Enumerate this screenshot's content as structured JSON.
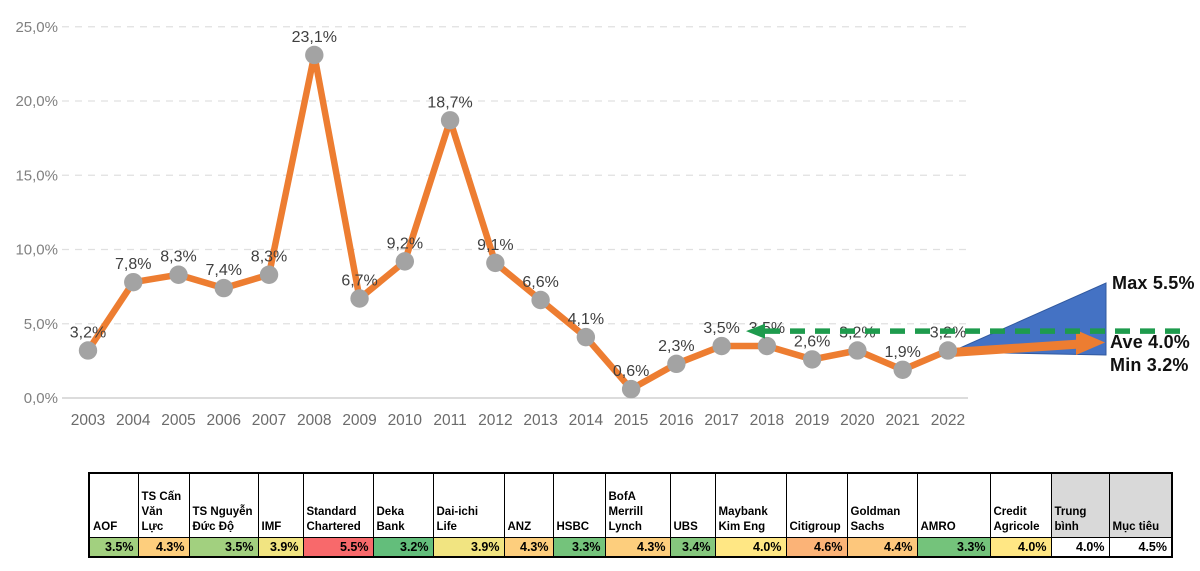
{
  "chart_data": {
    "type": "line",
    "title": "",
    "xlabel": "",
    "ylabel": "",
    "categories": [
      "2003",
      "2004",
      "2005",
      "2006",
      "2007",
      "2008",
      "2009",
      "2010",
      "2011",
      "2012",
      "2013",
      "2014",
      "2015",
      "2016",
      "2017",
      "2018",
      "2019",
      "2020",
      "2021",
      "2022"
    ],
    "values": [
      3.2,
      7.8,
      8.3,
      7.4,
      8.3,
      23.1,
      6.7,
      9.2,
      18.7,
      9.1,
      6.6,
      4.1,
      0.6,
      2.3,
      3.5,
      3.5,
      2.6,
      3.2,
      1.9,
      3.2
    ],
    "point_labels": [
      "3,2%",
      "7,8%",
      "8,3%",
      "7,4%",
      "8,3%",
      "23,1%",
      "6,7%",
      "9,2%",
      "18,7%",
      "9,1%",
      "6,6%",
      "4,1%",
      "0,6%",
      "2,3%",
      "3,5%",
      "3,5%",
      "2,6%",
      "3,2%",
      "1,9%",
      "3,2%"
    ],
    "ylim": [
      0,
      25
    ],
    "y_ticks": [
      {
        "value": 0,
        "label": "0,0%"
      },
      {
        "value": 5,
        "label": "5,0%"
      },
      {
        "value": 10,
        "label": "10,0%"
      },
      {
        "value": 15,
        "label": "15,0%"
      },
      {
        "value": 20,
        "label": "20,0%"
      },
      {
        "value": 25,
        "label": "25,0%"
      }
    ],
    "grid": "horizontal-dashed",
    "legend": "none",
    "series_color": "#ED7D31",
    "marker_color": "#A3A3A3",
    "target_line": {
      "value": 4.5,
      "style": "dashed",
      "color": "#1E9B4D",
      "starts_at_category": "2018",
      "arrow_direction": "left"
    },
    "forecast_fan": {
      "from_category": "2022",
      "from_value": 3.2,
      "max": 5.5,
      "ave": 4.0,
      "min": 3.2,
      "fill_color": "#4472C4",
      "arrow_color": "#ED7D31"
    }
  },
  "annotations": {
    "max": "Max 5.5%",
    "ave": "Ave 4.0%",
    "min": "Min 3.2%"
  },
  "forecast_table": {
    "columns": [
      {
        "label": "AOF",
        "value": "3.5%",
        "value_bg": "#A2D07F",
        "header_bg": "#FFFFFF"
      },
      {
        "label": "TS Cấn Văn Lực",
        "value": "4.3%",
        "value_bg": "#FDCE7D",
        "header_bg": "#FFFFFF"
      },
      {
        "label": "TS Nguyễn Đức Độ",
        "value": "3.5%",
        "value_bg": "#A2D07F",
        "header_bg": "#FFFFFF"
      },
      {
        "label": "IMF",
        "value": "3.9%",
        "value_bg": "#F1E481",
        "header_bg": "#FFFFFF"
      },
      {
        "label": "Standard Chartered",
        "value": "5.5%",
        "value_bg": "#F8696B",
        "header_bg": "#FFFFFF"
      },
      {
        "label": "Deka Bank",
        "value": "3.2%",
        "value_bg": "#63BE7B",
        "header_bg": "#FFFFFF"
      },
      {
        "label": "Dai-ichi Life",
        "value": "3.9%",
        "value_bg": "#F1E481",
        "header_bg": "#FFFFFF"
      },
      {
        "label": "ANZ",
        "value": "4.3%",
        "value_bg": "#FDCE7D",
        "header_bg": "#FFFFFF"
      },
      {
        "label": "HSBC",
        "value": "3.3%",
        "value_bg": "#74C37B",
        "header_bg": "#FFFFFF"
      },
      {
        "label": "BofA Merrill Lynch",
        "value": "4.3%",
        "value_bg": "#FDCE7D",
        "header_bg": "#FFFFFF"
      },
      {
        "label": "UBS",
        "value": "3.4%",
        "value_bg": "#85C77D",
        "header_bg": "#FFFFFF"
      },
      {
        "label": "Maybank Kim Eng",
        "value": "4.0%",
        "value_bg": "#FFE784",
        "header_bg": "#FFFFFF"
      },
      {
        "label": "Citigroup",
        "value": "4.6%",
        "value_bg": "#FBB377",
        "header_bg": "#FFFFFF"
      },
      {
        "label": "Goldman Sachs",
        "value": "4.4%",
        "value_bg": "#FDC77C",
        "header_bg": "#FFFFFF"
      },
      {
        "label": "AMRO",
        "value": "3.3%",
        "value_bg": "#74C37B",
        "header_bg": "#FFFFFF"
      },
      {
        "label": "Credit Agricole",
        "value": "4.0%",
        "value_bg": "#FFE784",
        "header_bg": "#FFFFFF"
      },
      {
        "label": "Trung bình",
        "value": "4.0%",
        "value_bg": "#FFFFFF",
        "header_bg": "#D9D9D9"
      },
      {
        "label": "Mục tiêu",
        "value": "4.5%",
        "value_bg": "#FFFFFF",
        "header_bg": "#D9D9D9"
      }
    ]
  }
}
